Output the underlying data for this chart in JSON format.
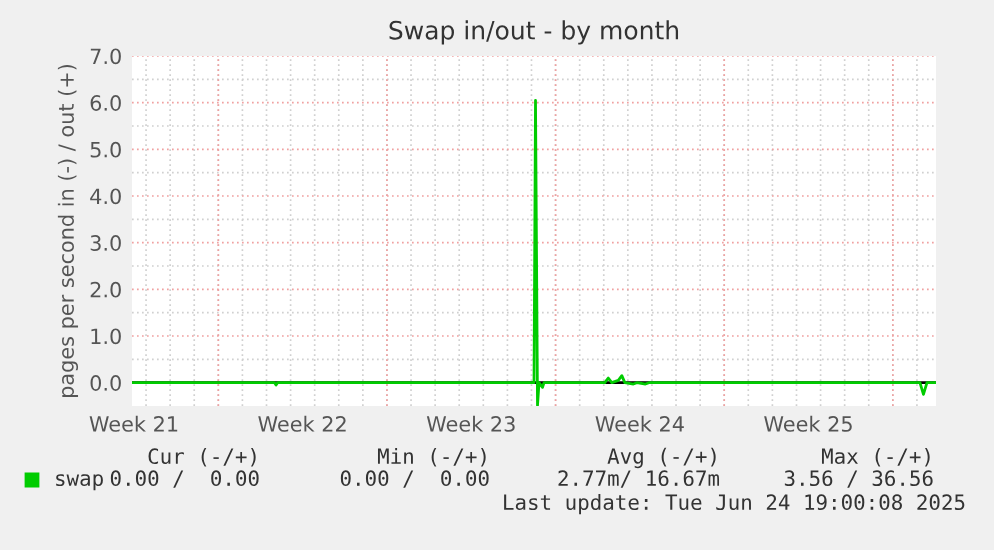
{
  "chart_data": {
    "type": "line",
    "title": "Swap in/out - by month",
    "ylabel": "pages per second in (-) / out (+)",
    "x": [
      "2025-05-22T10:00",
      "2025-05-28T08:00",
      "2025-05-28T09:30",
      "2025-05-28T11:00",
      "2025-06-08T02:30",
      "2025-06-08T04:00",
      "2025-06-08T06:00",
      "2025-06-08T07:30",
      "2025-06-08T11:00",
      "2025-06-08T12:30",
      "2025-06-08T14:00",
      "2025-06-11T01:00",
      "2025-06-11T04:30",
      "2025-06-11T08:00",
      "2025-06-11T14:30",
      "2025-06-11T18:00",
      "2025-06-11T21:00",
      "2025-06-12T05:30",
      "2025-06-12T09:00",
      "2025-06-12T17:30",
      "2025-06-12T21:00",
      "2025-06-24T03:00",
      "2025-06-24T06:30",
      "2025-06-24T10:00",
      "2025-06-24T19:00"
    ],
    "series": [
      {
        "name": "swap",
        "color": "#00cc00",
        "values": [
          0,
          0,
          -0.05,
          0,
          0,
          6.05,
          -0.49,
          0,
          -0.1,
          0,
          0,
          0,
          0.1,
          0,
          0.05,
          0.15,
          0,
          -0.03,
          0,
          -0.03,
          0,
          0,
          -0.25,
          0,
          0
        ]
      }
    ],
    "xlim": [
      "2025-05-22T10:00",
      "2025-06-24T19:00"
    ],
    "xticks": [
      {
        "value": "2025-05-22T12:00",
        "label": "Week 21"
      },
      {
        "value": "2025-05-29T12:00",
        "label": "Week 22"
      },
      {
        "value": "2025-06-05T12:00",
        "label": "Week 23"
      },
      {
        "value": "2025-06-12T12:00",
        "label": "Week 24"
      },
      {
        "value": "2025-06-19T12:00",
        "label": "Week 25"
      }
    ],
    "ylim": [
      -0.5,
      7.0
    ],
    "yticks": [
      {
        "value": 0,
        "label": "0.0"
      },
      {
        "value": 1,
        "label": "1.0"
      },
      {
        "value": 2,
        "label": "2.0"
      },
      {
        "value": 3,
        "label": "3.0"
      },
      {
        "value": 4,
        "label": "4.0"
      },
      {
        "value": 5,
        "label": "5.0"
      },
      {
        "value": 6,
        "label": "6.0"
      },
      {
        "value": 7,
        "label": "7.0"
      }
    ],
    "ref_lines": [
      {
        "axis": "y",
        "value": 0,
        "color": "#000000"
      }
    ],
    "grid": true,
    "legend": "bottom left",
    "annotations": [
      "Cur (-/+)",
      "Min (-/+)",
      "Avg (-/+)",
      "Max (-/+)",
      "0.00 /  0.00",
      "0.00 /  0.00",
      "2.77m/ 16.67m",
      "3.56 / 36.56",
      "Last update: Tue Jun 24 19:00:08 2025"
    ]
  }
}
